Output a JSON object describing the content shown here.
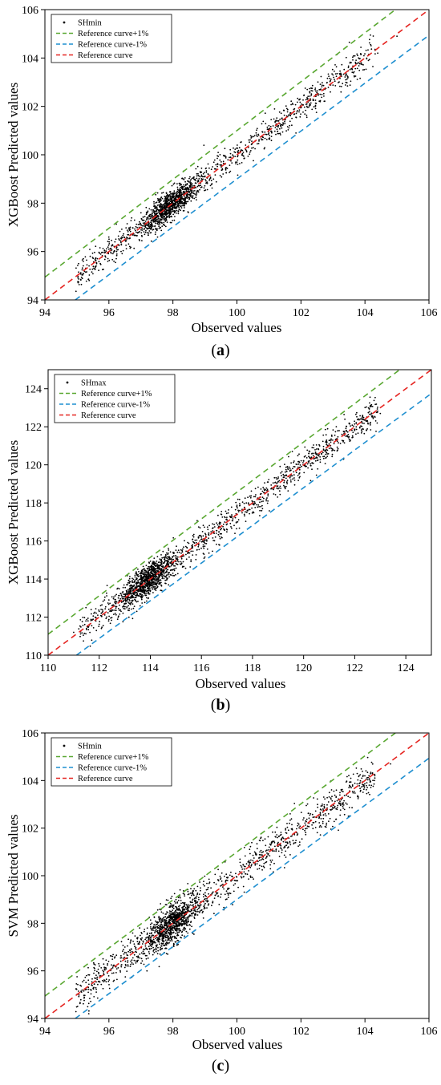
{
  "chart_data": [
    {
      "type": "scatter",
      "panel_label": "a",
      "xlabel": "Observed values",
      "ylabel": "XGBoost Predicted values",
      "xlim": [
        94,
        106
      ],
      "ylim": [
        94,
        106
      ],
      "xticks": [
        "94",
        "96",
        "98",
        "100",
        "102",
        "104",
        "106"
      ],
      "yticks": [
        "94",
        "96",
        "98",
        "100",
        "102",
        "104",
        "106"
      ],
      "grid": false,
      "legend_position": "top-left",
      "scatter_series": "SHmin",
      "reference_lines": [
        {
          "name": "Reference curve+1%",
          "color": "#5aa832",
          "slope": 1.01
        },
        {
          "name": "Reference curve-1%",
          "color": "#1f8fd0",
          "slope": 0.99
        },
        {
          "name": "Reference curve",
          "color": "#e52521",
          "slope": 1.0
        }
      ],
      "point_count": 1800,
      "points": [
        [
          95.2,
          95.7
        ],
        [
          95.6,
          95.4
        ],
        [
          96.0,
          96.1
        ],
        [
          96.4,
          96.6
        ],
        [
          96.8,
          97.3
        ],
        [
          97.0,
          97.6
        ],
        [
          97.2,
          97.4
        ],
        [
          97.5,
          97.8
        ],
        [
          97.8,
          97.6
        ],
        [
          98.0,
          98.1
        ],
        [
          98.3,
          98.0
        ],
        [
          98.6,
          98.8
        ],
        [
          99.0,
          99.1
        ],
        [
          99.4,
          99.6
        ],
        [
          99.8,
          99.9
        ],
        [
          100.2,
          100.1
        ],
        [
          100.6,
          100.9
        ],
        [
          101.0,
          101.2
        ],
        [
          101.4,
          101.5
        ],
        [
          101.8,
          101.9
        ],
        [
          102.2,
          102.3
        ],
        [
          102.6,
          102.5
        ],
        [
          103.0,
          103.3
        ],
        [
          103.4,
          103.1
        ],
        [
          103.8,
          104.0
        ],
        [
          104.4,
          104.2
        ],
        [
          105.0,
          104.9
        ]
      ]
    },
    {
      "type": "scatter",
      "panel_label": "b",
      "xlabel": "Observed values",
      "ylabel": "XGBoost Predicted values",
      "xlim": [
        110,
        125
      ],
      "ylim": [
        110,
        125
      ],
      "xticks": [
        "110",
        "112",
        "114",
        "116",
        "118",
        "120",
        "122",
        "124"
      ],
      "yticks": [
        "110",
        "112",
        "114",
        "116",
        "118",
        "120",
        "122",
        "124"
      ],
      "grid": false,
      "legend_position": "top-left",
      "scatter_series": "SHmax",
      "reference_lines": [
        {
          "name": "Reference curve+1%",
          "color": "#5aa832",
          "slope": 1.01
        },
        {
          "name": "Reference curve-1%",
          "color": "#1f8fd0",
          "slope": 0.99
        },
        {
          "name": "Reference curve",
          "color": "#e52521",
          "slope": 1.0
        }
      ],
      "point_count": 1900,
      "points": [
        [
          111.0,
          111.2
        ],
        [
          111.5,
          111.4
        ],
        [
          112.0,
          112.3
        ],
        [
          112.5,
          112.6
        ],
        [
          113.0,
          113.2
        ],
        [
          113.5,
          113.4
        ],
        [
          114.0,
          114.1
        ],
        [
          114.5,
          114.6
        ],
        [
          115.0,
          115.1
        ],
        [
          115.5,
          115.4
        ],
        [
          116.0,
          116.2
        ],
        [
          116.5,
          116.4
        ],
        [
          117.0,
          117.1
        ],
        [
          117.5,
          117.6
        ],
        [
          118.0,
          118.0
        ],
        [
          118.5,
          118.7
        ],
        [
          119.0,
          119.1
        ],
        [
          119.5,
          119.4
        ],
        [
          120.0,
          120.2
        ],
        [
          120.5,
          120.4
        ],
        [
          121.0,
          121.1
        ],
        [
          121.5,
          121.6
        ],
        [
          122.0,
          121.8
        ],
        [
          122.5,
          122.3
        ],
        [
          123.0,
          122.7
        ]
      ]
    },
    {
      "type": "scatter",
      "panel_label": "c",
      "xlabel": "Observed values",
      "ylabel": "SVM Predicted values",
      "xlim": [
        94,
        106
      ],
      "ylim": [
        94,
        106
      ],
      "xticks": [
        "94",
        "96",
        "98",
        "100",
        "102",
        "104",
        "106"
      ],
      "yticks": [
        "94",
        "96",
        "98",
        "100",
        "102",
        "104",
        "106"
      ],
      "grid": false,
      "legend_position": "top-left",
      "scatter_series": "SHmin",
      "reference_lines": [
        {
          "name": "Reference curve+1%",
          "color": "#5aa832",
          "slope": 1.01
        },
        {
          "name": "Reference curve-1%",
          "color": "#1f8fd0",
          "slope": 0.99
        },
        {
          "name": "Reference curve",
          "color": "#e52521",
          "slope": 1.0
        }
      ],
      "point_count": 1800,
      "points": [
        [
          95.3,
          95.8
        ],
        [
          95.7,
          96.2
        ],
        [
          96.1,
          95.9
        ],
        [
          96.5,
          97.0
        ],
        [
          96.9,
          97.4
        ],
        [
          97.2,
          97.8
        ],
        [
          97.5,
          97.3
        ],
        [
          97.8,
          98.2
        ],
        [
          98.0,
          97.7
        ],
        [
          98.3,
          98.6
        ],
        [
          98.7,
          98.4
        ],
        [
          99.1,
          99.5
        ],
        [
          99.5,
          99.9
        ],
        [
          99.9,
          99.6
        ],
        [
          100.3,
          100.5
        ],
        [
          100.7,
          100.3
        ],
        [
          101.1,
          101.4
        ],
        [
          101.5,
          101.2
        ],
        [
          101.9,
          102.1
        ],
        [
          102.3,
          102.6
        ],
        [
          102.7,
          102.4
        ],
        [
          103.1,
          103.3
        ],
        [
          103.5,
          103.7
        ],
        [
          103.9,
          104.1
        ],
        [
          104.3,
          104.0
        ],
        [
          104.8,
          104.7
        ]
      ]
    }
  ]
}
